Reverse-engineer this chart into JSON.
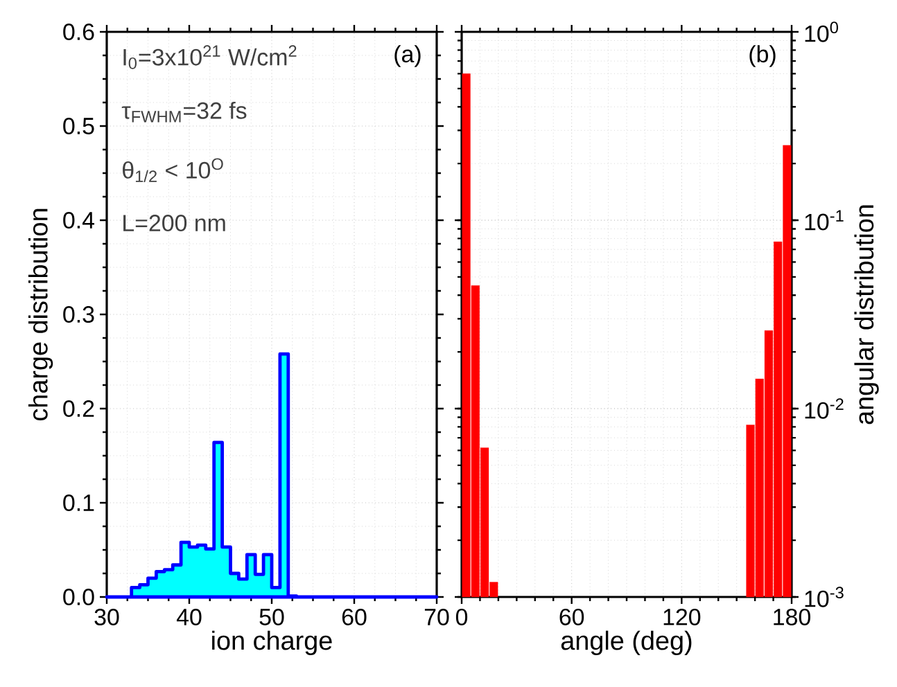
{
  "chart_data": [
    {
      "type": "histogram",
      "title": "(a)",
      "xlabel": "ion charge",
      "ylabel": "charge distribution",
      "bins": [
        30,
        31,
        32,
        33,
        34,
        35,
        36,
        37,
        38,
        39,
        40,
        41,
        42,
        43,
        44,
        45,
        46,
        47,
        48,
        49,
        50,
        51,
        52,
        53,
        54,
        55,
        56,
        57,
        58,
        59,
        60,
        61,
        62,
        63,
        64,
        65,
        66,
        67,
        68,
        69,
        70
      ],
      "values": [
        0,
        0,
        0,
        0.01,
        0.013,
        0.02,
        0.027,
        0.029,
        0.034,
        0.058,
        0.053,
        0.055,
        0.051,
        0.164,
        0.053,
        0.025,
        0.019,
        0.045,
        0.024,
        0.045,
        0.01,
        0.258,
        0.001,
        0,
        0,
        0,
        0,
        0,
        0,
        0,
        0,
        0,
        0,
        0,
        0,
        0,
        0,
        0,
        0,
        0
      ],
      "color": "#00ffff",
      "xlim": [
        30,
        70
      ],
      "xticks": [
        30,
        40,
        50,
        60,
        70
      ],
      "ylim": [
        0,
        0.6
      ],
      "yticks": [
        {
          "value": 0,
          "label": "0.0"
        },
        {
          "value": 0.1,
          "label": "0.1"
        },
        {
          "value": 0.2,
          "label": "0.2"
        },
        {
          "value": 0.3,
          "label": "0.3"
        },
        {
          "value": 0.4,
          "label": "0.4"
        },
        {
          "value": 0.5,
          "label": "0.5"
        },
        {
          "value": 0.6,
          "label": "0.6"
        }
      ],
      "grid": true,
      "annotations": [
        "I$_{0}$=3x10$^{21}$ W/cm$^{2}$",
        "τ$_{FWHM}$=32 fs",
        "θ$_{1/2}$ < 10$^{O}$",
        "L=200 nm"
      ]
    },
    {
      "type": "bar",
      "title": "(b)",
      "xlabel": "angle (deg)",
      "y2label": "angular distribution",
      "series": [
        {
          "color": "#ff0000",
          "axis": "y2",
          "x": [
            2.5,
            7.5,
            12.5,
            17.5,
            157.5,
            162.5,
            167.5,
            172.5,
            177.5
          ],
          "values": [
            0.6,
            0.045,
            0.0062,
            0.0012,
            0.0082,
            0.0144,
            0.026,
            0.077,
            0.25
          ]
        }
      ],
      "xlim": [
        0,
        180
      ],
      "xticks": [
        0,
        60,
        120,
        180
      ],
      "y2lim": [
        0.001,
        1
      ],
      "y2ticks": [
        {
          "value": 0.001,
          "label": "10$^{-3}$"
        },
        {
          "value": 0.01,
          "label": "10$^{-2}$"
        },
        {
          "value": 0.1,
          "label": "10$^{-1}$"
        },
        {
          "value": 1,
          "label": "10$^{0}$"
        }
      ],
      "log": "y2",
      "grid": true
    }
  ]
}
